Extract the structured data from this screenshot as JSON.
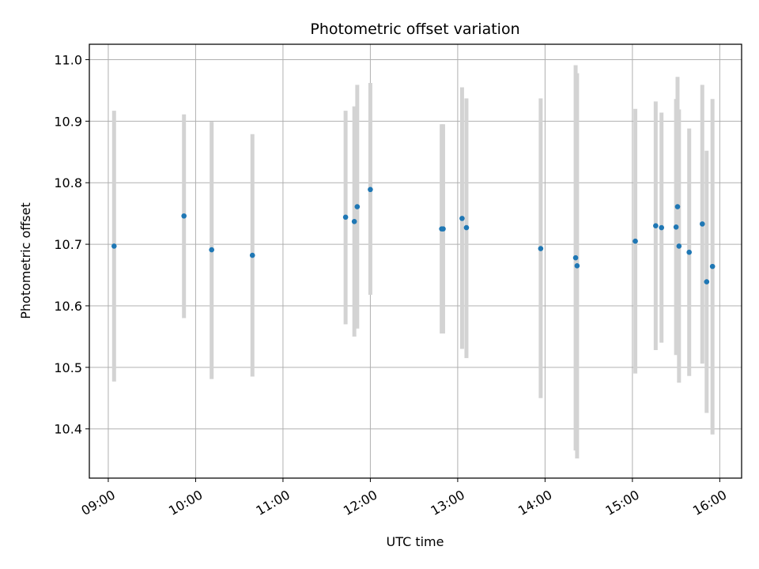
{
  "chart_data": {
    "type": "scatter",
    "title": "Photometric offset variation",
    "xlabel": "UTC time",
    "ylabel": "Photometric offset",
    "x_ticks": [
      "09:00",
      "10:00",
      "11:00",
      "12:00",
      "13:00",
      "14:00",
      "15:00",
      "16:00"
    ],
    "y_ticks": [
      "10.4",
      "10.5",
      "10.6",
      "10.7",
      "10.8",
      "10.9",
      "11.0"
    ],
    "xlim": [
      "08:47",
      "16:15"
    ],
    "ylim": [
      10.32,
      11.025
    ],
    "grid": true,
    "legend": "none",
    "marker_color": "#1f77b4",
    "errorbar_color": "#d3d3d3",
    "points": [
      {
        "x": "09:04",
        "y": 10.697,
        "ylow": 10.477,
        "yhigh": 10.917
      },
      {
        "x": "09:52",
        "y": 10.746,
        "ylow": 10.58,
        "yhigh": 10.911
      },
      {
        "x": "10:11",
        "y": 10.691,
        "ylow": 10.481,
        "yhigh": 10.899
      },
      {
        "x": "10:39",
        "y": 10.682,
        "ylow": 10.485,
        "yhigh": 10.879
      },
      {
        "x": "11:43",
        "y": 10.744,
        "ylow": 10.57,
        "yhigh": 10.917
      },
      {
        "x": "11:49",
        "y": 10.737,
        "ylow": 10.55,
        "yhigh": 10.924
      },
      {
        "x": "11:51",
        "y": 10.761,
        "ylow": 10.563,
        "yhigh": 10.959
      },
      {
        "x": "12:00",
        "y": 10.789,
        "ylow": 10.618,
        "yhigh": 10.962
      },
      {
        "x": "12:49",
        "y": 10.725,
        "ylow": 10.555,
        "yhigh": 10.895
      },
      {
        "x": "12:50",
        "y": 10.725,
        "ylow": 10.555,
        "yhigh": 10.895
      },
      {
        "x": "13:03",
        "y": 10.742,
        "ylow": 10.53,
        "yhigh": 10.955
      },
      {
        "x": "13:06",
        "y": 10.727,
        "ylow": 10.515,
        "yhigh": 10.937
      },
      {
        "x": "13:57",
        "y": 10.693,
        "ylow": 10.45,
        "yhigh": 10.937
      },
      {
        "x": "14:21",
        "y": 10.678,
        "ylow": 10.365,
        "yhigh": 10.991
      },
      {
        "x": "14:22",
        "y": 10.665,
        "ylow": 10.352,
        "yhigh": 10.978
      },
      {
        "x": "15:02",
        "y": 10.705,
        "ylow": 10.49,
        "yhigh": 10.92
      },
      {
        "x": "15:16",
        "y": 10.73,
        "ylow": 10.528,
        "yhigh": 10.932
      },
      {
        "x": "15:20",
        "y": 10.727,
        "ylow": 10.54,
        "yhigh": 10.914
      },
      {
        "x": "15:30",
        "y": 10.728,
        "ylow": 10.52,
        "yhigh": 10.936
      },
      {
        "x": "15:31",
        "y": 10.761,
        "ylow": 10.55,
        "yhigh": 10.972
      },
      {
        "x": "15:32",
        "y": 10.697,
        "ylow": 10.475,
        "yhigh": 10.919
      },
      {
        "x": "15:39",
        "y": 10.687,
        "ylow": 10.486,
        "yhigh": 10.888
      },
      {
        "x": "15:48",
        "y": 10.733,
        "ylow": 10.506,
        "yhigh": 10.959
      },
      {
        "x": "15:51",
        "y": 10.639,
        "ylow": 10.426,
        "yhigh": 10.852
      },
      {
        "x": "15:55",
        "y": 10.664,
        "ylow": 10.391,
        "yhigh": 10.936
      }
    ]
  }
}
